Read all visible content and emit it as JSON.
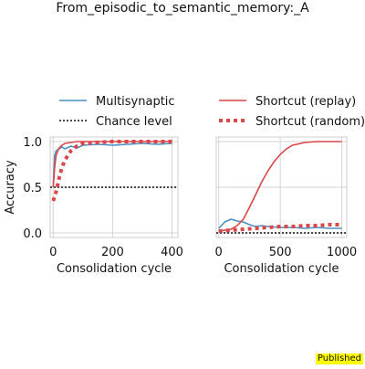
{
  "figure": {
    "title": "From_episodic_to_semantic_memory:_A",
    "badge": "Published"
  },
  "colors": {
    "multisynaptic": "#4a90c4",
    "shortcut": "#d9474a",
    "chance": "#111111",
    "grid": "#d3d3d3"
  },
  "legend": {
    "placement": "top",
    "entries": [
      {
        "label": "Multisynaptic",
        "style": "solid",
        "color": "#4a90c4"
      },
      {
        "label": "Shortcut (replay)",
        "style": "solid",
        "color": "#d9474a"
      },
      {
        "label": "Chance level",
        "style": "dotted",
        "color": "#111111"
      },
      {
        "label": "Shortcut (random)",
        "style": "thick-dotted",
        "color": "#d9474a"
      }
    ]
  },
  "chart_data": [
    {
      "type": "line",
      "title": "",
      "xlabel": "Consolidation cycle",
      "ylabel": "Accuracy",
      "xlim": [
        -10,
        420
      ],
      "ylim": [
        -0.05,
        1.05
      ],
      "xticks": [
        0,
        200,
        400
      ],
      "yticks": [
        0.0,
        0.5,
        1.0
      ],
      "ytick_labels": [
        "0.0",
        "0.5",
        "1.0"
      ],
      "grid": true,
      "chance_level": 0.5,
      "series": [
        {
          "name": "Multisynaptic",
          "style": "solid",
          "x": [
            0,
            5,
            10,
            20,
            30,
            40,
            60,
            80,
            100,
            150,
            200,
            250,
            300,
            350,
            400
          ],
          "y": [
            0.5,
            0.85,
            0.9,
            0.92,
            0.94,
            0.92,
            0.95,
            0.93,
            0.96,
            0.97,
            0.96,
            0.97,
            0.98,
            0.97,
            0.98
          ]
        },
        {
          "name": "Shortcut (replay)",
          "style": "solid",
          "x": [
            0,
            5,
            10,
            20,
            30,
            40,
            60,
            80,
            100,
            150,
            200,
            300,
            400
          ],
          "y": [
            0.5,
            0.72,
            0.85,
            0.93,
            0.96,
            0.98,
            0.99,
            1.0,
            1.0,
            1.0,
            1.0,
            1.0,
            1.0
          ]
        },
        {
          "name": "Shortcut (random)",
          "style": "thick-dotted",
          "x": [
            0,
            10,
            20,
            30,
            40,
            60,
            80,
            100,
            150,
            200,
            300,
            400
          ],
          "y": [
            0.35,
            0.45,
            0.6,
            0.72,
            0.8,
            0.9,
            0.95,
            0.98,
            0.99,
            1.0,
            1.0,
            1.0
          ]
        }
      ]
    },
    {
      "type": "line",
      "title": "",
      "xlabel": "Consolidation cycle",
      "ylabel": "",
      "xlim": [
        -20,
        1040
      ],
      "ylim": [
        -0.05,
        1.05
      ],
      "xticks": [
        0,
        500,
        1000
      ],
      "yticks": [
        0.0,
        0.5,
        1.0
      ],
      "ytick_labels": [
        "",
        "",
        ""
      ],
      "grid": true,
      "chance_level": 0.0,
      "series": [
        {
          "name": "Multisynaptic",
          "style": "solid",
          "x": [
            0,
            50,
            100,
            150,
            200,
            250,
            300,
            350,
            400,
            500,
            600,
            700,
            800,
            900,
            1000
          ],
          "y": [
            0.05,
            0.12,
            0.15,
            0.13,
            0.12,
            0.09,
            0.07,
            0.08,
            0.07,
            0.06,
            0.06,
            0.05,
            0.06,
            0.05,
            0.05
          ]
        },
        {
          "name": "Shortcut (replay)",
          "style": "solid",
          "x": [
            0,
            100,
            150,
            200,
            250,
            300,
            350,
            400,
            450,
            500,
            550,
            600,
            700,
            800,
            900,
            1000
          ],
          "y": [
            0.02,
            0.04,
            0.08,
            0.15,
            0.28,
            0.42,
            0.56,
            0.68,
            0.78,
            0.86,
            0.92,
            0.96,
            0.99,
            1.0,
            1.0,
            1.0
          ]
        },
        {
          "name": "Shortcut (random)",
          "style": "thick-dotted",
          "x": [
            0,
            100,
            200,
            300,
            400,
            500,
            600,
            700,
            800,
            900,
            1000
          ],
          "y": [
            0.02,
            0.03,
            0.04,
            0.05,
            0.06,
            0.07,
            0.07,
            0.08,
            0.08,
            0.09,
            0.09
          ]
        }
      ]
    }
  ]
}
